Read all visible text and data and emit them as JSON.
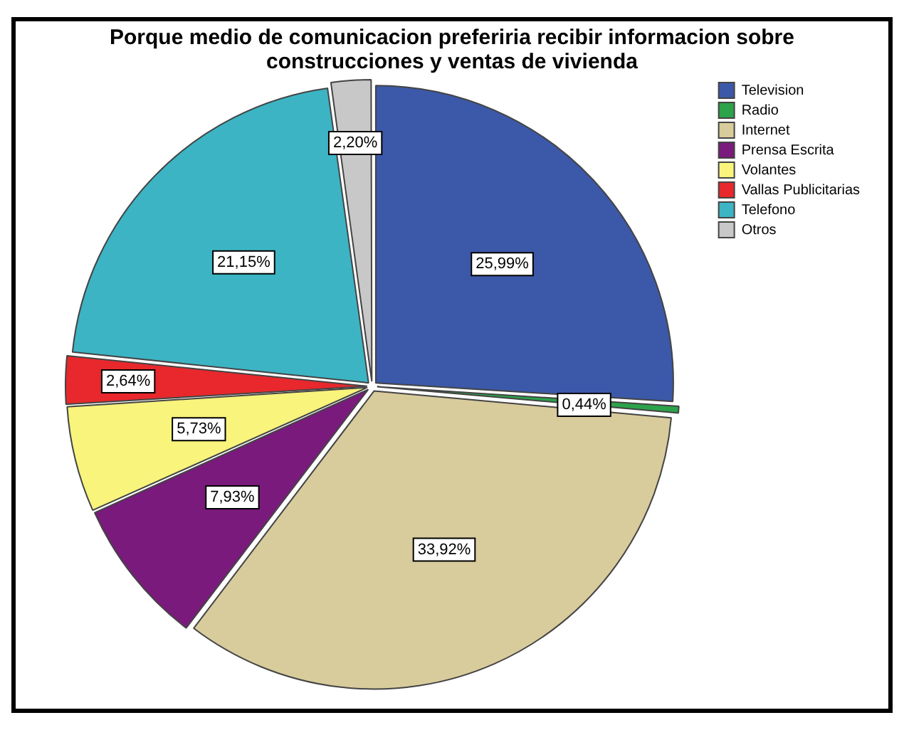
{
  "chart_data": {
    "type": "pie",
    "title": "Porque medio de comunicacion preferiria recibir informacion sobre construcciones y ventas de vivienda",
    "categories": [
      "Television",
      "Radio",
      "Internet",
      "Prensa Escrita",
      "Volantes",
      "Vallas Publicitarias",
      "Telefono",
      "Otros"
    ],
    "values": [
      25.99,
      0.44,
      33.92,
      7.93,
      5.73,
      2.64,
      21.15,
      2.2
    ],
    "value_labels": [
      "25,99%",
      "0,44%",
      "33,92%",
      "7,93%",
      "5,73%",
      "2,64%",
      "21,15%",
      "2,20%"
    ],
    "colors": [
      "#3c58a8",
      "#2ca24a",
      "#d8cc9c",
      "#7a1a7c",
      "#f8f47c",
      "#e8282c",
      "#3cb4c4",
      "#c8c8c8"
    ],
    "legend": "top right"
  }
}
